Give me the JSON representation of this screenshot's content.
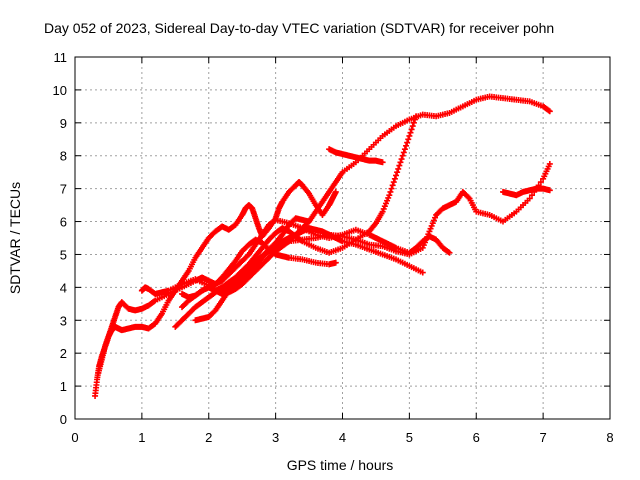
{
  "chart_data": {
    "type": "scatter",
    "title": "Day 052 of 2023, Sidereal Day-to-day VTEC variation (SDTVAR) for receiver pohn",
    "xlabel": "GPS time / hours",
    "ylabel": "SDTVAR / TECUs",
    "xlim": [
      0,
      8
    ],
    "ylim": [
      0,
      11
    ],
    "xticks": [
      "0",
      "1",
      "2",
      "3",
      "4",
      "5",
      "6",
      "7",
      "8"
    ],
    "yticks": [
      "0",
      "1",
      "2",
      "3",
      "4",
      "5",
      "6",
      "7",
      "8",
      "9",
      "10",
      "11"
    ],
    "grid": true,
    "marker": "+",
    "color": "#ff0000",
    "series": [
      {
        "x": [
          0.3,
          0.33,
          0.36,
          0.4,
          0.45,
          0.5,
          0.55,
          0.6,
          0.65,
          0.7,
          0.8,
          0.9,
          1.0,
          1.1,
          1.2,
          1.3,
          1.4,
          1.5,
          1.6,
          1.7,
          1.8,
          1.9,
          2.0,
          2.1,
          2.2,
          2.3,
          2.4,
          2.5,
          2.55,
          2.6,
          2.65,
          2.7,
          2.75,
          2.8,
          2.9,
          3.0,
          3.05,
          3.1,
          3.2,
          3.3,
          3.35,
          3.4,
          3.5,
          3.6,
          3.7,
          3.8,
          3.85,
          3.9
        ],
        "y": [
          0.7,
          1.2,
          1.6,
          1.9,
          2.2,
          2.5,
          2.7,
          2.8,
          2.75,
          2.7,
          2.75,
          2.8,
          2.8,
          2.75,
          2.9,
          3.2,
          3.6,
          3.9,
          4.2,
          4.5,
          4.9,
          5.2,
          5.5,
          5.7,
          5.85,
          5.75,
          5.9,
          6.2,
          6.4,
          6.5,
          6.4,
          6.1,
          5.8,
          5.55,
          5.8,
          6.1,
          6.4,
          6.6,
          6.9,
          7.1,
          7.2,
          7.1,
          6.85,
          6.5,
          6.2,
          6.5,
          6.7,
          6.9
        ]
      },
      {
        "x": [
          0.35,
          0.4,
          0.45,
          0.5,
          0.55,
          0.6,
          0.65,
          0.7,
          0.8,
          0.9,
          1.0,
          1.1,
          1.2,
          1.4,
          1.6,
          1.8,
          1.9,
          2.0,
          2.1,
          2.2,
          2.3,
          2.4,
          2.5,
          2.6,
          2.7,
          2.8,
          2.9,
          3.0,
          3.2,
          3.4,
          3.6,
          3.8,
          4.0,
          4.2,
          4.4,
          4.5,
          4.6,
          4.7,
          4.8,
          5.0,
          5.1,
          5.2,
          5.3,
          5.4,
          5.5,
          5.6
        ],
        "y": [
          1.4,
          1.8,
          2.2,
          2.5,
          2.8,
          3.1,
          3.4,
          3.55,
          3.35,
          3.3,
          3.35,
          3.45,
          3.6,
          3.8,
          4.0,
          4.2,
          4.3,
          4.2,
          4.1,
          4.2,
          4.4,
          4.6,
          4.8,
          5.0,
          5.3,
          5.6,
          5.9,
          6.05,
          5.95,
          5.8,
          5.6,
          5.5,
          5.6,
          5.75,
          5.6,
          5.5,
          5.4,
          5.3,
          5.2,
          5.05,
          5.2,
          5.4,
          5.55,
          5.45,
          5.2,
          5.05
        ]
      },
      {
        "x": [
          1.0,
          1.05,
          1.1,
          1.2,
          1.3,
          1.4,
          1.6,
          1.8,
          2.0,
          2.1,
          2.2,
          2.3,
          2.4,
          2.5,
          2.6,
          2.7,
          2.8,
          2.9,
          3.0,
          3.1,
          3.2,
          3.3,
          3.4,
          3.5,
          3.6,
          3.7,
          3.8,
          3.9,
          4.0,
          4.2,
          4.4,
          4.6,
          4.8,
          5.0,
          5.2,
          5.4,
          5.6,
          5.8,
          6.0,
          6.2,
          6.4,
          6.6,
          6.8,
          7.0,
          7.1
        ],
        "y": [
          3.9,
          4.0,
          3.95,
          3.8,
          3.85,
          3.9,
          4.1,
          4.25,
          4.05,
          3.9,
          3.8,
          3.85,
          3.95,
          4.1,
          4.3,
          4.5,
          4.7,
          4.9,
          5.1,
          5.25,
          5.4,
          5.6,
          5.8,
          6.0,
          6.3,
          6.6,
          6.9,
          7.2,
          7.5,
          7.8,
          8.2,
          8.6,
          8.9,
          9.1,
          9.25,
          9.2,
          9.3,
          9.5,
          9.7,
          9.8,
          9.75,
          9.7,
          9.65,
          9.5,
          9.35
        ]
      },
      {
        "x": [
          1.5,
          1.6,
          1.7,
          1.8,
          1.9,
          2.0,
          2.1,
          2.2,
          2.3,
          2.4,
          2.5,
          2.6,
          2.7,
          2.8,
          2.9,
          3.0,
          3.1,
          3.2,
          3.3,
          3.4,
          3.6,
          3.8,
          4.0,
          4.2,
          4.4,
          4.5,
          4.6,
          4.7,
          4.8,
          4.9,
          5.0,
          5.1
        ],
        "y": [
          2.8,
          3.0,
          3.2,
          3.4,
          3.55,
          3.7,
          3.85,
          4.0,
          4.15,
          4.3,
          4.5,
          4.7,
          4.95,
          5.2,
          5.45,
          5.65,
          5.8,
          5.7,
          5.55,
          5.4,
          5.2,
          5.05,
          5.2,
          5.45,
          5.7,
          5.95,
          6.3,
          6.8,
          7.4,
          8.0,
          8.6,
          9.2
        ]
      },
      {
        "x": [
          1.6,
          1.7,
          1.8,
          1.9,
          2.0,
          2.1,
          2.2,
          2.3,
          2.4,
          2.5,
          2.6,
          2.7,
          2.8,
          2.9,
          3.0,
          3.1,
          3.2,
          3.4,
          3.6,
          3.8,
          3.9
        ],
        "y": [
          3.4,
          3.6,
          3.75,
          3.9,
          4.0,
          4.1,
          4.3,
          4.55,
          4.8,
          5.1,
          5.3,
          5.45,
          5.35,
          5.15,
          5.0,
          4.95,
          4.9,
          4.85,
          4.75,
          4.7,
          4.75
        ]
      },
      {
        "x": [
          1.6,
          1.7,
          1.8,
          1.9,
          2.0,
          2.1,
          2.2,
          2.3,
          2.4,
          2.5,
          2.6,
          2.7,
          2.8,
          2.9,
          3.0,
          3.1,
          3.2,
          3.3,
          3.4,
          3.5,
          3.6,
          3.7,
          3.8,
          3.9,
          4.0,
          4.2,
          4.4,
          4.6,
          4.8,
          5.0,
          5.2
        ],
        "y": [
          3.8,
          3.7,
          3.75,
          3.9,
          4.0,
          3.9,
          4.0,
          4.1,
          4.2,
          4.35,
          4.5,
          4.7,
          4.9,
          5.1,
          5.25,
          5.4,
          5.5,
          5.6,
          5.7,
          5.8,
          5.75,
          5.7,
          5.6,
          5.5,
          5.4,
          5.3,
          5.15,
          5.0,
          4.85,
          4.65,
          4.45
        ]
      },
      {
        "x": [
          1.8,
          1.9,
          2.0,
          2.1,
          2.2,
          2.3,
          2.4,
          2.5,
          2.6,
          2.7,
          2.8,
          2.9,
          3.0,
          3.1,
          3.2,
          3.3,
          3.4,
          3.5
        ],
        "y": [
          3.0,
          3.05,
          3.1,
          3.3,
          3.6,
          3.9,
          4.15,
          4.4,
          4.6,
          4.8,
          4.95,
          5.15,
          5.35,
          5.6,
          5.9,
          6.1,
          6.05,
          6.0
        ]
      },
      {
        "x": [
          2.0,
          2.1,
          2.2,
          2.3,
          2.4,
          2.5,
          2.6,
          2.7,
          2.8,
          2.9,
          3.0,
          3.1,
          3.2,
          3.4,
          3.6,
          3.8,
          4.0,
          4.2,
          4.4,
          4.6,
          4.8,
          5.0,
          5.2,
          5.3,
          5.4,
          5.5,
          5.6,
          5.7,
          5.8,
          5.9,
          6.0,
          6.2,
          6.4,
          6.6,
          6.8,
          7.0,
          7.1
        ],
        "y": [
          4.0,
          3.9,
          3.85,
          3.95,
          4.05,
          4.2,
          4.4,
          4.65,
          4.9,
          5.1,
          5.25,
          5.35,
          5.4,
          5.45,
          5.5,
          5.6,
          5.55,
          5.45,
          5.3,
          5.25,
          5.1,
          5.0,
          5.2,
          5.7,
          6.2,
          6.4,
          6.5,
          6.6,
          6.9,
          6.7,
          6.3,
          6.2,
          6.0,
          6.3,
          6.7,
          7.3,
          7.75
        ]
      },
      {
        "x": [
          3.8,
          3.9,
          4.0,
          4.1,
          4.2,
          4.3,
          4.4,
          4.5,
          4.6
        ],
        "y": [
          8.2,
          8.1,
          8.05,
          8.0,
          7.95,
          7.9,
          7.85,
          7.85,
          7.8
        ]
      },
      {
        "x": [
          6.4,
          6.5,
          6.6,
          6.7,
          6.8,
          6.9,
          7.0,
          7.1
        ],
        "y": [
          6.9,
          6.85,
          6.8,
          6.9,
          6.95,
          7.0,
          7.0,
          6.95
        ]
      }
    ]
  }
}
